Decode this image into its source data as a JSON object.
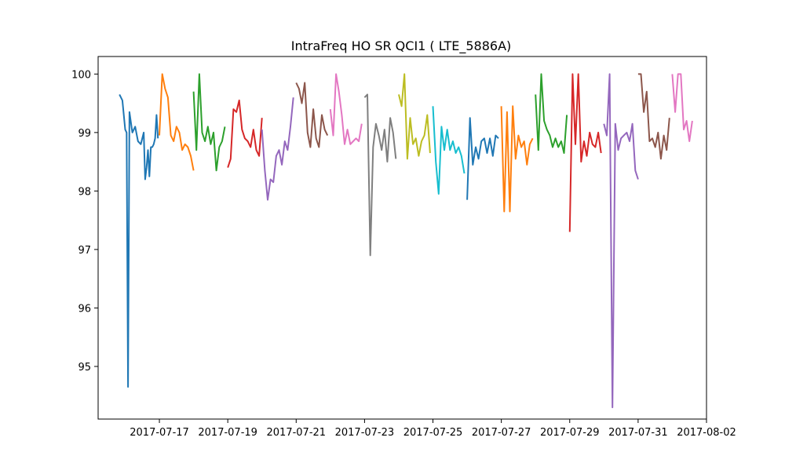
{
  "chart_data": {
    "type": "line",
    "title": "IntraFreq HO SR QCI1 ( LTE_5886A)",
    "xlabel": "",
    "ylabel": "",
    "x_ticks": [
      "2017-07-17",
      "2017-07-19",
      "2017-07-21",
      "2017-07-23",
      "2017-07-25",
      "2017-07-27",
      "2017-07-29",
      "2017-07-31",
      "2017-08-02"
    ],
    "y_ticks": [
      95,
      96,
      97,
      98,
      99,
      100
    ],
    "xlim": [
      "2017-07-15T05:00",
      "2017-08-02T00:00"
    ],
    "ylim": [
      94.1,
      100.3
    ],
    "grid": false,
    "legend": "none",
    "colors": [
      "#1f77b4",
      "#ff7f0e",
      "#2ca02c",
      "#d62728",
      "#9467bd",
      "#8c564b",
      "#e377c2",
      "#7f7f7f",
      "#bcbd22",
      "#17becf"
    ],
    "series": [
      {
        "x": [
          "2017-07-15T20:00",
          "2017-07-15T22:00",
          "2017-07-16T00:00",
          "2017-07-16T01:00",
          "2017-07-16T02:00",
          "2017-07-16T03:00",
          "2017-07-16T05:00",
          "2017-07-16T07:00",
          "2017-07-16T09:00",
          "2017-07-16T11:00",
          "2017-07-16T13:00",
          "2017-07-16T14:00",
          "2017-07-16T15:00",
          "2017-07-16T16:00",
          "2017-07-16T17:00",
          "2017-07-16T18:00",
          "2017-07-16T19:00",
          "2017-07-16T20:00",
          "2017-07-16T21:00",
          "2017-07-16T22:00",
          "2017-07-16T23:00"
        ],
        "values": [
          99.65,
          99.55,
          99.05,
          99.0,
          94.65,
          99.35,
          99.0,
          99.1,
          98.85,
          98.8,
          99.0,
          98.2,
          98.4,
          98.7,
          98.25,
          98.75,
          98.75,
          98.8,
          98.9,
          99.3,
          98.9
        ]
      },
      {
        "x": [
          "2017-07-17T00:00",
          "2017-07-17T02:00",
          "2017-07-17T04:00",
          "2017-07-17T06:00",
          "2017-07-17T08:00",
          "2017-07-17T10:00",
          "2017-07-17T12:00",
          "2017-07-17T14:00",
          "2017-07-17T16:00",
          "2017-07-17T18:00",
          "2017-07-17T20:00",
          "2017-07-17T22:00",
          "2017-07-18T00:00"
        ],
        "values": [
          98.95,
          100.0,
          99.75,
          99.6,
          98.95,
          98.85,
          99.1,
          99.0,
          98.7,
          98.8,
          98.75,
          98.6,
          98.35
        ]
      },
      {
        "x": [
          "2017-07-18T00:00",
          "2017-07-18T02:00",
          "2017-07-18T04:00",
          "2017-07-18T06:00",
          "2017-07-18T08:00",
          "2017-07-18T10:00",
          "2017-07-18T12:00",
          "2017-07-18T14:00",
          "2017-07-18T16:00",
          "2017-07-18T18:00",
          "2017-07-18T20:00",
          "2017-07-18T22:00"
        ],
        "values": [
          99.7,
          98.7,
          100.0,
          99.0,
          98.85,
          99.1,
          98.8,
          99.0,
          98.35,
          98.75,
          98.85,
          99.1
        ]
      },
      {
        "x": [
          "2017-07-19T00:00",
          "2017-07-19T02:00",
          "2017-07-19T04:00",
          "2017-07-19T06:00",
          "2017-07-19T08:00",
          "2017-07-19T10:00",
          "2017-07-19T12:00",
          "2017-07-19T14:00",
          "2017-07-19T16:00",
          "2017-07-19T18:00",
          "2017-07-19T20:00",
          "2017-07-19T22:00",
          "2017-07-20T00:00"
        ],
        "values": [
          98.4,
          98.55,
          99.4,
          99.35,
          99.55,
          99.05,
          98.9,
          98.85,
          98.75,
          99.05,
          98.7,
          98.6,
          99.25
        ]
      },
      {
        "x": [
          "2017-07-20T00:00",
          "2017-07-20T02:00",
          "2017-07-20T04:00",
          "2017-07-20T06:00",
          "2017-07-20T08:00",
          "2017-07-20T10:00",
          "2017-07-20T12:00",
          "2017-07-20T14:00",
          "2017-07-20T16:00",
          "2017-07-20T18:00",
          "2017-07-20T20:00",
          "2017-07-20T22:00"
        ],
        "values": [
          99.05,
          98.35,
          97.85,
          98.2,
          98.15,
          98.6,
          98.7,
          98.45,
          98.85,
          98.7,
          99.1,
          99.6
        ]
      },
      {
        "x": [
          "2017-07-21T00:00",
          "2017-07-21T02:00",
          "2017-07-21T04:00",
          "2017-07-21T06:00",
          "2017-07-21T08:00",
          "2017-07-21T10:00",
          "2017-07-21T12:00",
          "2017-07-21T14:00",
          "2017-07-21T16:00",
          "2017-07-21T18:00",
          "2017-07-21T20:00",
          "2017-07-21T22:00"
        ],
        "values": [
          99.85,
          99.75,
          99.5,
          99.85,
          99.0,
          98.75,
          99.4,
          98.9,
          98.75,
          99.3,
          99.05,
          98.95
        ]
      },
      {
        "x": [
          "2017-07-22T00:00",
          "2017-07-22T02:00",
          "2017-07-22T04:00",
          "2017-07-22T06:00",
          "2017-07-22T08:00",
          "2017-07-22T10:00",
          "2017-07-22T12:00",
          "2017-07-22T14:00",
          "2017-07-22T16:00",
          "2017-07-22T18:00",
          "2017-07-22T20:00",
          "2017-07-22T22:00"
        ],
        "values": [
          99.4,
          98.95,
          100.0,
          99.7,
          99.3,
          98.8,
          99.05,
          98.8,
          98.85,
          98.9,
          98.85,
          99.15
        ]
      },
      {
        "x": [
          "2017-07-23T00:00",
          "2017-07-23T02:00",
          "2017-07-23T04:00",
          "2017-07-23T06:00",
          "2017-07-23T08:00",
          "2017-07-23T10:00",
          "2017-07-23T12:00",
          "2017-07-23T14:00",
          "2017-07-23T16:00",
          "2017-07-23T18:00",
          "2017-07-23T20:00",
          "2017-07-23T22:00"
        ],
        "values": [
          99.6,
          99.65,
          96.9,
          98.75,
          99.15,
          98.95,
          98.7,
          99.05,
          98.5,
          99.25,
          99.0,
          98.55
        ]
      },
      {
        "x": [
          "2017-07-24T00:00",
          "2017-07-24T02:00",
          "2017-07-24T04:00",
          "2017-07-24T06:00",
          "2017-07-24T08:00",
          "2017-07-24T10:00",
          "2017-07-24T12:00",
          "2017-07-24T14:00",
          "2017-07-24T16:00",
          "2017-07-24T18:00",
          "2017-07-24T20:00",
          "2017-07-24T22:00"
        ],
        "values": [
          99.65,
          99.45,
          100.0,
          98.55,
          99.25,
          98.8,
          98.9,
          98.6,
          98.85,
          98.95,
          99.3,
          98.65
        ]
      },
      {
        "x": [
          "2017-07-25T00:00",
          "2017-07-25T02:00",
          "2017-07-25T04:00",
          "2017-07-25T06:00",
          "2017-07-25T08:00",
          "2017-07-25T10:00",
          "2017-07-25T12:00",
          "2017-07-25T14:00",
          "2017-07-25T16:00",
          "2017-07-25T18:00",
          "2017-07-25T20:00",
          "2017-07-25T22:00"
        ],
        "values": [
          99.45,
          98.5,
          97.95,
          99.1,
          98.7,
          99.05,
          98.7,
          98.85,
          98.65,
          98.75,
          98.6,
          98.3
        ]
      },
      {
        "x": [
          "2017-07-26T00:00",
          "2017-07-26T02:00",
          "2017-07-26T04:00",
          "2017-07-26T06:00",
          "2017-07-26T08:00",
          "2017-07-26T10:00",
          "2017-07-26T12:00",
          "2017-07-26T14:00",
          "2017-07-26T16:00",
          "2017-07-26T18:00",
          "2017-07-26T20:00",
          "2017-07-26T22:00"
        ],
        "values": [
          97.85,
          99.25,
          98.45,
          98.75,
          98.55,
          98.85,
          98.9,
          98.65,
          98.9,
          98.6,
          98.95,
          98.9
        ]
      },
      {
        "x": [
          "2017-07-27T00:00",
          "2017-07-27T02:00",
          "2017-07-27T04:00",
          "2017-07-27T06:00",
          "2017-07-27T08:00",
          "2017-07-27T10:00",
          "2017-07-27T12:00",
          "2017-07-27T14:00",
          "2017-07-27T16:00",
          "2017-07-27T18:00",
          "2017-07-27T20:00",
          "2017-07-27T22:00"
        ],
        "values": [
          99.45,
          97.65,
          99.35,
          97.65,
          99.45,
          98.55,
          98.95,
          98.75,
          98.85,
          98.45,
          98.8,
          98.9
        ]
      },
      {
        "x": [
          "2017-07-28T00:00",
          "2017-07-28T02:00",
          "2017-07-28T04:00",
          "2017-07-28T06:00",
          "2017-07-28T08:00",
          "2017-07-28T10:00",
          "2017-07-28T12:00",
          "2017-07-28T14:00",
          "2017-07-28T16:00",
          "2017-07-28T18:00",
          "2017-07-28T20:00",
          "2017-07-28T22:00"
        ],
        "values": [
          99.65,
          98.7,
          100.0,
          99.2,
          99.05,
          98.95,
          98.75,
          98.9,
          98.75,
          98.85,
          98.65,
          99.3
        ]
      },
      {
        "x": [
          "2017-07-29T00:00",
          "2017-07-29T02:00",
          "2017-07-29T04:00",
          "2017-07-29T06:00",
          "2017-07-29T08:00",
          "2017-07-29T10:00",
          "2017-07-29T12:00",
          "2017-07-29T14:00",
          "2017-07-29T16:00",
          "2017-07-29T18:00",
          "2017-07-29T20:00",
          "2017-07-29T22:00"
        ],
        "values": [
          97.3,
          100.0,
          98.8,
          100.0,
          98.5,
          98.85,
          98.6,
          99.0,
          98.8,
          98.75,
          99.0,
          98.65
        ]
      },
      {
        "x": [
          "2017-07-30T00:00",
          "2017-07-30T02:00",
          "2017-07-30T04:00",
          "2017-07-30T06:00",
          "2017-07-30T08:00",
          "2017-07-30T10:00",
          "2017-07-30T12:00",
          "2017-07-30T14:00",
          "2017-07-30T16:00",
          "2017-07-30T18:00",
          "2017-07-30T20:00",
          "2017-07-30T22:00",
          "2017-07-31T00:00"
        ],
        "values": [
          99.15,
          98.95,
          100.0,
          94.3,
          99.15,
          98.7,
          98.9,
          98.95,
          99.0,
          98.85,
          99.15,
          98.35,
          98.2
        ]
      },
      {
        "x": [
          "2017-07-31T00:00",
          "2017-07-31T02:00",
          "2017-07-31T04:00",
          "2017-07-31T06:00",
          "2017-07-31T08:00",
          "2017-07-31T10:00",
          "2017-07-31T12:00",
          "2017-07-31T14:00",
          "2017-07-31T16:00",
          "2017-07-31T18:00",
          "2017-07-31T20:00",
          "2017-07-31T22:00"
        ],
        "values": [
          100.0,
          100.0,
          99.35,
          99.7,
          98.85,
          98.9,
          98.75,
          99.0,
          98.55,
          98.95,
          98.7,
          99.25
        ]
      },
      {
        "x": [
          "2017-08-01T00:00",
          "2017-08-01T02:00",
          "2017-08-01T04:00",
          "2017-08-01T06:00",
          "2017-08-01T08:00",
          "2017-08-01T10:00",
          "2017-08-01T12:00",
          "2017-08-01T14:00"
        ],
        "values": [
          100.0,
          99.35,
          100.0,
          100.0,
          99.05,
          99.2,
          98.85,
          99.2
        ]
      }
    ]
  }
}
